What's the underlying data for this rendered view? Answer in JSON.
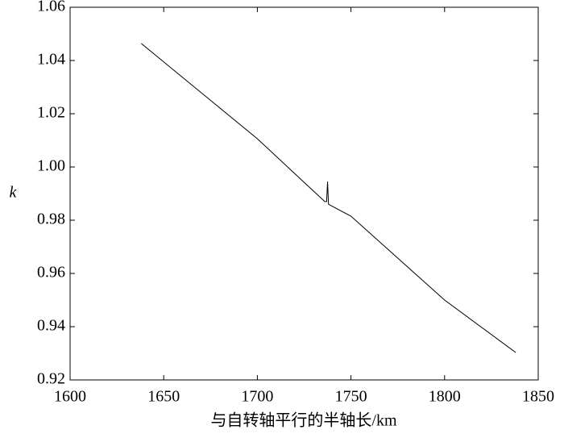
{
  "chart_data": {
    "type": "line",
    "xlabel": "与自转轴平行的半轴长/km",
    "ylabel": "k",
    "x": [
      1638,
      1700,
      1736,
      1737,
      1737.5,
      1738,
      1750,
      1800,
      1838
    ],
    "series": [
      {
        "color": "#000000",
        "values": [
          1.0464,
          1.0106,
          0.987,
          0.987,
          0.9945,
          0.986,
          0.9815,
          0.95,
          0.9303
        ]
      }
    ],
    "xlim": [
      1600,
      1850
    ],
    "xticks": [
      1600,
      1650,
      1700,
      1750,
      1800,
      1850
    ],
    "ylim": [
      0.92,
      1.06
    ],
    "yticks": [
      0.92,
      0.94,
      0.96,
      0.98,
      {
        "value": 1,
        "label": "1.00"
      },
      1.02,
      1.04,
      1.06
    ],
    "grid": false
  }
}
